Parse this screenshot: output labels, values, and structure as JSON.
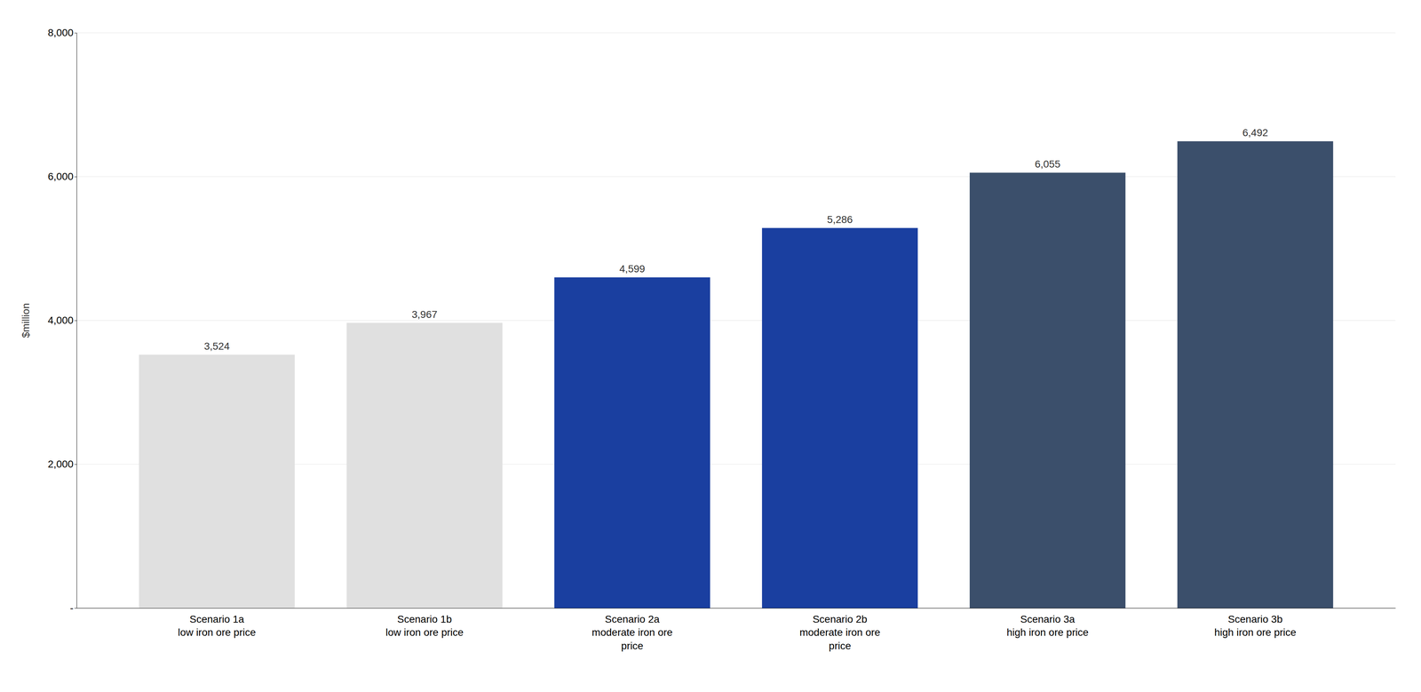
{
  "chart_data": {
    "type": "bar",
    "ylabel": "$million",
    "categories": [
      "Scenario 1a\nlow iron ore price",
      "Scenario 1b\nlow iron ore price",
      "Scenario 2a\nmoderate iron ore\nprice",
      "Scenario 2b\nmoderate iron ore\nprice",
      "Scenario 3a\nhigh iron ore price",
      "Scenario 3b\nhigh iron ore price"
    ],
    "values": [
      3524,
      3967,
      4599,
      5286,
      6055,
      6492
    ],
    "value_labels": [
      "3,524",
      "3,967",
      "4,599",
      "5,286",
      "6,055",
      "6,492"
    ],
    "colors": [
      "#e0e0e0",
      "#e0e0e0",
      "#1a3fa0",
      "#1a3fa0",
      "#3b4f6b",
      "#3b4f6b"
    ],
    "ylim": [
      0,
      8000
    ],
    "yticks": [
      {
        "value": 0,
        "label": "-"
      },
      {
        "value": 2000,
        "label": "2,000"
      },
      {
        "value": 4000,
        "label": "4,000"
      },
      {
        "value": 6000,
        "label": "6,000"
      },
      {
        "value": 8000,
        "label": "8,000"
      }
    ],
    "grid": true,
    "data_labels": true
  }
}
